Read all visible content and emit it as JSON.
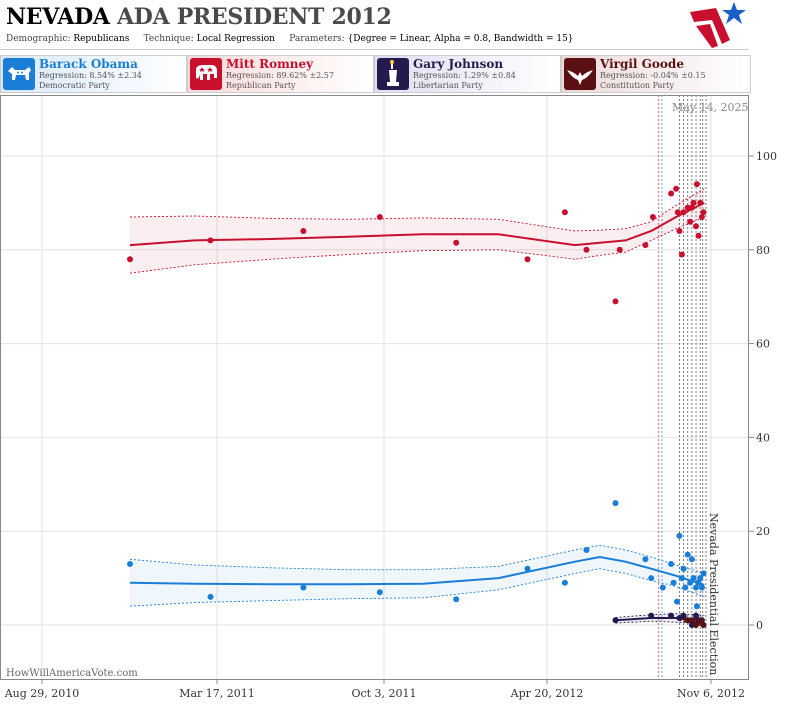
{
  "header": {
    "state": "NEVADA",
    "title_rest": "ADA PRESIDENT 2012",
    "demographic_label": "Demographic:",
    "demographic_value": "Republicans",
    "technique_label": "Technique:",
    "technique_value": "Local Regression",
    "parameters_label": "Parameters:",
    "parameters_value": "{Degree = Linear, Alpha = 0.8, Bandwidth = 15}"
  },
  "logo_icon": "stars-stripes-logo",
  "candidates": [
    {
      "name": "Barack Obama",
      "regression": "Regression: 8.54% ±2.34",
      "party": "Democratic Party",
      "color": "#1a7ed8",
      "icon": "donkey-icon"
    },
    {
      "name": "Mitt Romney",
      "regression": "Regression: 89.62% ±2.57",
      "party": "Republican Party",
      "color": "#c8102e",
      "icon": "elephant-icon"
    },
    {
      "name": "Gary Johnson",
      "regression": "Regression: 1.29% ±0.84",
      "party": "Libertarian Party",
      "color": "#241a4e",
      "icon": "statue-of-liberty-icon"
    },
    {
      "name": "Virgil Goode",
      "regression": "Regression: -0.04% ±0.15",
      "party": "Constitution Party",
      "color": "#5a1010",
      "icon": "eagle-icon"
    }
  ],
  "datestamp": "May 14, 2025",
  "watermark": "HowWillAmericaVote.com",
  "chart_data": {
    "type": "scatter",
    "x_ticks": [
      "Aug 29, 2010",
      "Mar 17, 2011",
      "Oct 3, 2011",
      "Apr 20, 2012",
      "Nov 6, 2012"
    ],
    "x_range": [
      "2010-08-29",
      "2012-11-06"
    ],
    "ylim": [
      -8,
      113
    ],
    "y_ticks": [
      0,
      20,
      40,
      60,
      80,
      100
    ],
    "y_axis_side": "right",
    "grid": true,
    "event_label": "Nevada Presidential Election",
    "event_date": "2012-11-06",
    "poll_dates_vertical_lines": [
      "2012-09-10",
      "2012-09-14",
      "2012-10-05",
      "2012-10-10",
      "2012-10-15",
      "2012-10-20",
      "2012-10-25",
      "2012-10-30",
      "2012-11-02"
    ],
    "series": [
      {
        "name": "Mitt Romney",
        "color": "#c8102e",
        "points": [
          [
            "2010-12-13",
            78
          ],
          [
            "2011-03-20",
            82
          ],
          [
            "2011-07-10",
            84
          ],
          [
            "2011-10-10",
            87
          ],
          [
            "2012-01-10",
            81.5
          ],
          [
            "2012-04-05",
            78
          ],
          [
            "2012-05-20",
            88
          ],
          [
            "2012-06-15",
            80
          ],
          [
            "2012-07-20",
            69
          ],
          [
            "2012-07-25",
            80
          ],
          [
            "2012-08-25",
            81
          ],
          [
            "2012-09-03",
            87
          ],
          [
            "2012-09-25",
            92
          ],
          [
            "2012-10-01",
            93
          ],
          [
            "2012-10-03",
            88
          ],
          [
            "2012-10-05",
            84
          ],
          [
            "2012-10-08",
            79
          ],
          [
            "2012-10-10",
            88
          ],
          [
            "2012-10-15",
            89
          ],
          [
            "2012-10-18",
            86
          ],
          [
            "2012-10-20",
            89
          ],
          [
            "2012-10-22",
            90
          ],
          [
            "2012-10-25",
            85
          ],
          [
            "2012-10-26",
            94
          ],
          [
            "2012-10-28",
            83
          ],
          [
            "2012-10-30",
            90
          ],
          [
            "2012-11-01",
            87
          ],
          [
            "2012-11-03",
            88
          ]
        ],
        "fit": [
          [
            "2010-12-13",
            81
          ],
          [
            "2011-03-01",
            82
          ],
          [
            "2011-06-01",
            82.3
          ],
          [
            "2011-09-01",
            82.8
          ],
          [
            "2011-12-01",
            83.3
          ],
          [
            "2012-03-01",
            83.3
          ],
          [
            "2012-06-01",
            81
          ],
          [
            "2012-07-01",
            81.5
          ],
          [
            "2012-08-01",
            82
          ],
          [
            "2012-09-01",
            84
          ],
          [
            "2012-10-01",
            87
          ],
          [
            "2012-11-04",
            90
          ]
        ],
        "fit_upper": [
          [
            "2010-12-13",
            87
          ],
          [
            "2011-03-01",
            87.2
          ],
          [
            "2011-06-01",
            86.7
          ],
          [
            "2011-09-01",
            86.5
          ],
          [
            "2011-12-01",
            86.8
          ],
          [
            "2012-03-01",
            86.5
          ],
          [
            "2012-06-01",
            84
          ],
          [
            "2012-07-01",
            84.2
          ],
          [
            "2012-08-01",
            84.5
          ],
          [
            "2012-09-01",
            86
          ],
          [
            "2012-10-01",
            89.5
          ],
          [
            "2012-11-04",
            93
          ]
        ],
        "fit_lower": [
          [
            "2010-12-13",
            75
          ],
          [
            "2011-03-01",
            76.8
          ],
          [
            "2011-06-01",
            78
          ],
          [
            "2011-09-01",
            79
          ],
          [
            "2011-12-01",
            79.8
          ],
          [
            "2012-03-01",
            80
          ],
          [
            "2012-06-01",
            78
          ],
          [
            "2012-07-01",
            78.8
          ],
          [
            "2012-08-01",
            79.5
          ],
          [
            "2012-09-01",
            82
          ],
          [
            "2012-10-01",
            84.5
          ],
          [
            "2012-11-04",
            87
          ]
        ]
      },
      {
        "name": "Barack Obama",
        "color": "#1a7ed8",
        "points": [
          [
            "2010-12-13",
            13
          ],
          [
            "2011-03-20",
            6
          ],
          [
            "2011-07-10",
            8
          ],
          [
            "2011-10-10",
            7
          ],
          [
            "2012-01-10",
            5.5
          ],
          [
            "2012-04-05",
            12
          ],
          [
            "2012-05-20",
            9
          ],
          [
            "2012-06-15",
            16
          ],
          [
            "2012-07-20",
            26
          ],
          [
            "2012-08-25",
            14
          ],
          [
            "2012-09-01",
            10
          ],
          [
            "2012-09-15",
            8
          ],
          [
            "2012-09-25",
            13
          ],
          [
            "2012-09-28",
            9
          ],
          [
            "2012-10-02",
            5
          ],
          [
            "2012-10-05",
            19
          ],
          [
            "2012-10-08",
            10
          ],
          [
            "2012-10-10",
            12
          ],
          [
            "2012-10-12",
            8
          ],
          [
            "2012-10-15",
            15
          ],
          [
            "2012-10-18",
            9
          ],
          [
            "2012-10-20",
            14
          ],
          [
            "2012-10-22",
            10
          ],
          [
            "2012-10-25",
            8
          ],
          [
            "2012-10-26",
            4
          ],
          [
            "2012-10-28",
            9
          ],
          [
            "2012-10-30",
            10
          ],
          [
            "2012-11-01",
            8
          ],
          [
            "2012-11-03",
            11
          ]
        ],
        "fit": [
          [
            "2010-12-13",
            9
          ],
          [
            "2011-03-01",
            8.8
          ],
          [
            "2011-06-01",
            8.7
          ],
          [
            "2011-09-01",
            8.7
          ],
          [
            "2011-12-01",
            8.8
          ],
          [
            "2012-03-01",
            10
          ],
          [
            "2012-06-01",
            13.5
          ],
          [
            "2012-07-01",
            14.5
          ],
          [
            "2012-08-01",
            13.5
          ],
          [
            "2012-09-01",
            12
          ],
          [
            "2012-10-01",
            10.5
          ],
          [
            "2012-11-04",
            8.5
          ]
        ],
        "fit_upper": [
          [
            "2010-12-13",
            14
          ],
          [
            "2011-03-01",
            12.8
          ],
          [
            "2011-06-01",
            12.2
          ],
          [
            "2011-09-01",
            11.8
          ],
          [
            "2011-12-01",
            11.8
          ],
          [
            "2012-03-01",
            12.5
          ],
          [
            "2012-06-01",
            16
          ],
          [
            "2012-07-01",
            17
          ],
          [
            "2012-08-01",
            16
          ],
          [
            "2012-09-01",
            14.5
          ],
          [
            "2012-10-01",
            12.8
          ],
          [
            "2012-11-04",
            11
          ]
        ],
        "fit_lower": [
          [
            "2010-12-13",
            4
          ],
          [
            "2011-03-01",
            4.8
          ],
          [
            "2011-06-01",
            5.2
          ],
          [
            "2011-09-01",
            5.6
          ],
          [
            "2011-12-01",
            5.8
          ],
          [
            "2012-03-01",
            7.5
          ],
          [
            "2012-06-01",
            11
          ],
          [
            "2012-07-01",
            12
          ],
          [
            "2012-08-01",
            11
          ],
          [
            "2012-09-01",
            9.5
          ],
          [
            "2012-10-01",
            8.2
          ],
          [
            "2012-11-04",
            6
          ]
        ]
      },
      {
        "name": "Gary Johnson",
        "color": "#241a4e",
        "points": [
          [
            "2012-07-20",
            1
          ],
          [
            "2012-09-01",
            2
          ],
          [
            "2012-09-25",
            2
          ],
          [
            "2012-10-05",
            1.5
          ],
          [
            "2012-10-10",
            2
          ],
          [
            "2012-10-15",
            1
          ],
          [
            "2012-10-20",
            0
          ],
          [
            "2012-10-25",
            2
          ],
          [
            "2012-10-28",
            1
          ],
          [
            "2012-11-01",
            1
          ]
        ],
        "fit": [
          [
            "2012-07-20",
            1
          ],
          [
            "2012-09-01",
            1.5
          ],
          [
            "2012-10-01",
            1.5
          ],
          [
            "2012-11-04",
            1.2
          ]
        ],
        "fit_upper": [
          [
            "2012-07-20",
            1.6
          ],
          [
            "2012-09-01",
            2.2
          ],
          [
            "2012-10-01",
            2.4
          ],
          [
            "2012-11-04",
            2.1
          ]
        ],
        "fit_lower": [
          [
            "2012-07-20",
            0.4
          ],
          [
            "2012-09-01",
            0.8
          ],
          [
            "2012-10-01",
            0.6
          ],
          [
            "2012-11-04",
            0.3
          ]
        ]
      },
      {
        "name": "Virgil Goode",
        "color": "#5a1010",
        "points": [
          [
            "2012-10-15",
            1
          ],
          [
            "2012-10-20",
            1
          ],
          [
            "2012-10-25",
            0
          ],
          [
            "2012-10-30",
            1
          ],
          [
            "2012-11-03",
            0
          ]
        ],
        "fit": [
          [
            "2012-10-05",
            1.5
          ],
          [
            "2012-10-20",
            0.8
          ],
          [
            "2012-11-04",
            0
          ]
        ],
        "fit_upper": [
          [
            "2012-10-05",
            2.0
          ],
          [
            "2012-10-20",
            1.3
          ],
          [
            "2012-11-04",
            0.3
          ]
        ],
        "fit_lower": [
          [
            "2012-10-05",
            1.0
          ],
          [
            "2012-10-20",
            0.3
          ],
          [
            "2012-11-04",
            -0.3
          ]
        ]
      }
    ]
  }
}
